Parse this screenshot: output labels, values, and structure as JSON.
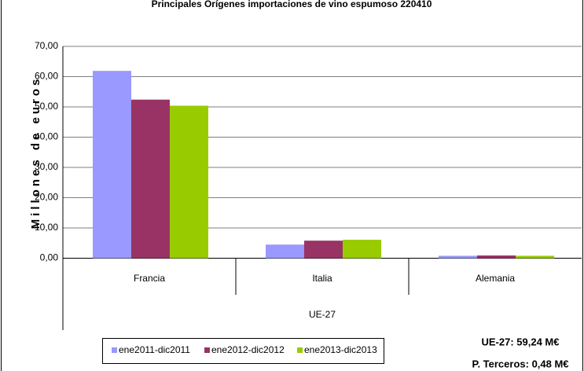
{
  "chart_data": {
    "type": "bar",
    "title": "Principales Orígenes importaciones de vino espumoso 220410",
    "y_label": "Millones de euros",
    "categories": [
      "Francia",
      "Italia",
      "Alemania"
    ],
    "group_label": "UE-27",
    "series": [
      {
        "name": "ene2011-dic2011",
        "color": "#9999ff",
        "values": [
          61.9,
          4.5,
          0.8
        ]
      },
      {
        "name": "ene2012-dic2012",
        "color": "#993366",
        "values": [
          52.4,
          5.8,
          0.9
        ]
      },
      {
        "name": "ene2013-dic2013",
        "color": "#99cc00",
        "values": [
          50.4,
          6.1,
          0.8
        ]
      }
    ],
    "ylim": [
      0,
      70
    ],
    "yticks": [
      {
        "value": 0,
        "label": "0,00"
      },
      {
        "value": 10,
        "label": "10,00"
      },
      {
        "value": 20,
        "label": "20,00"
      },
      {
        "value": 30,
        "label": "30,00"
      },
      {
        "value": 40,
        "label": "40,00"
      },
      {
        "value": 50,
        "label": "50,00"
      },
      {
        "value": 60,
        "label": "60,00"
      },
      {
        "value": 70,
        "label": "70,00"
      }
    ],
    "grid": true,
    "annotations": [
      "UE-27: 59,24 M€",
      "P. Terceros: 0,48 M€"
    ]
  }
}
